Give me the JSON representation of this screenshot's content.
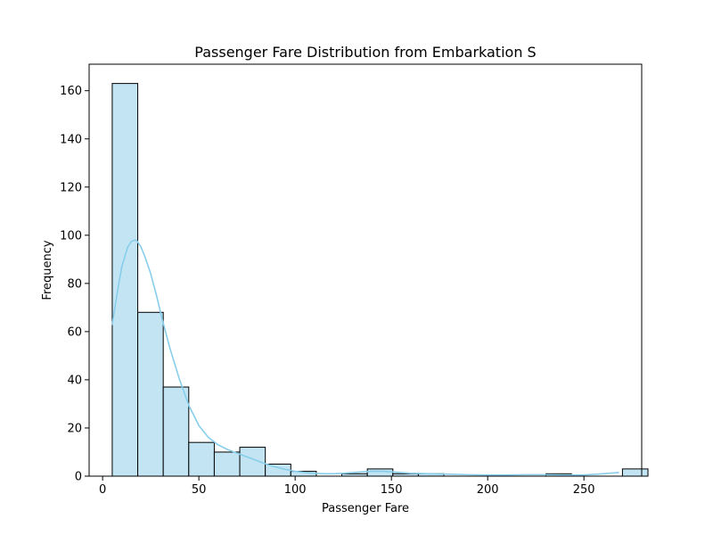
{
  "chart_data": {
    "type": "bar",
    "subtype": "histogram-with-kde",
    "title": "Passenger Fare Distribution from Embarkation S",
    "xlabel": "Passenger Fare",
    "ylabel": "Frequency",
    "xlim": [
      -7,
      280
    ],
    "ylim": [
      0,
      171
    ],
    "xticks": [
      0,
      50,
      100,
      150,
      200,
      250
    ],
    "yticks": [
      0,
      20,
      40,
      60,
      80,
      100,
      120,
      140,
      160
    ],
    "grid": false,
    "legend": "none",
    "colors": {
      "bar_fill": "#c2e4f3",
      "bar_edge": "#000000",
      "kde_line": "#87ceeb"
    },
    "bins": {
      "start": 5.0,
      "width": 13.25,
      "counts": [
        163,
        68,
        37,
        14,
        10,
        12,
        5,
        2,
        0,
        1,
        3,
        1,
        1,
        0,
        0,
        0,
        0,
        1,
        0,
        0,
        3
      ]
    },
    "kde": {
      "x": [
        5,
        8,
        10,
        13,
        15,
        17,
        18,
        20,
        22,
        25,
        28,
        31,
        35,
        40,
        45,
        50,
        55,
        60,
        65,
        70,
        75,
        80,
        85,
        90,
        95,
        100,
        105,
        110,
        115,
        120,
        125,
        130,
        135,
        140,
        145,
        150,
        155,
        160,
        170,
        180,
        190,
        200,
        210,
        220,
        230,
        240,
        250,
        260,
        268
      ],
      "y": [
        63,
        78,
        87,
        95,
        97.5,
        98,
        97.5,
        95,
        91,
        84,
        75,
        65,
        53,
        40,
        29,
        21,
        16,
        13,
        11,
        9.5,
        8,
        6.5,
        5,
        3.8,
        2.8,
        2,
        1.5,
        1.2,
        1,
        1,
        1.2,
        1.5,
        1.8,
        2,
        2,
        1.8,
        1.5,
        1.2,
        1,
        0.8,
        0.6,
        0.5,
        0.5,
        0.6,
        0.6,
        0.5,
        0.5,
        1.0,
        1.5
      ]
    }
  }
}
